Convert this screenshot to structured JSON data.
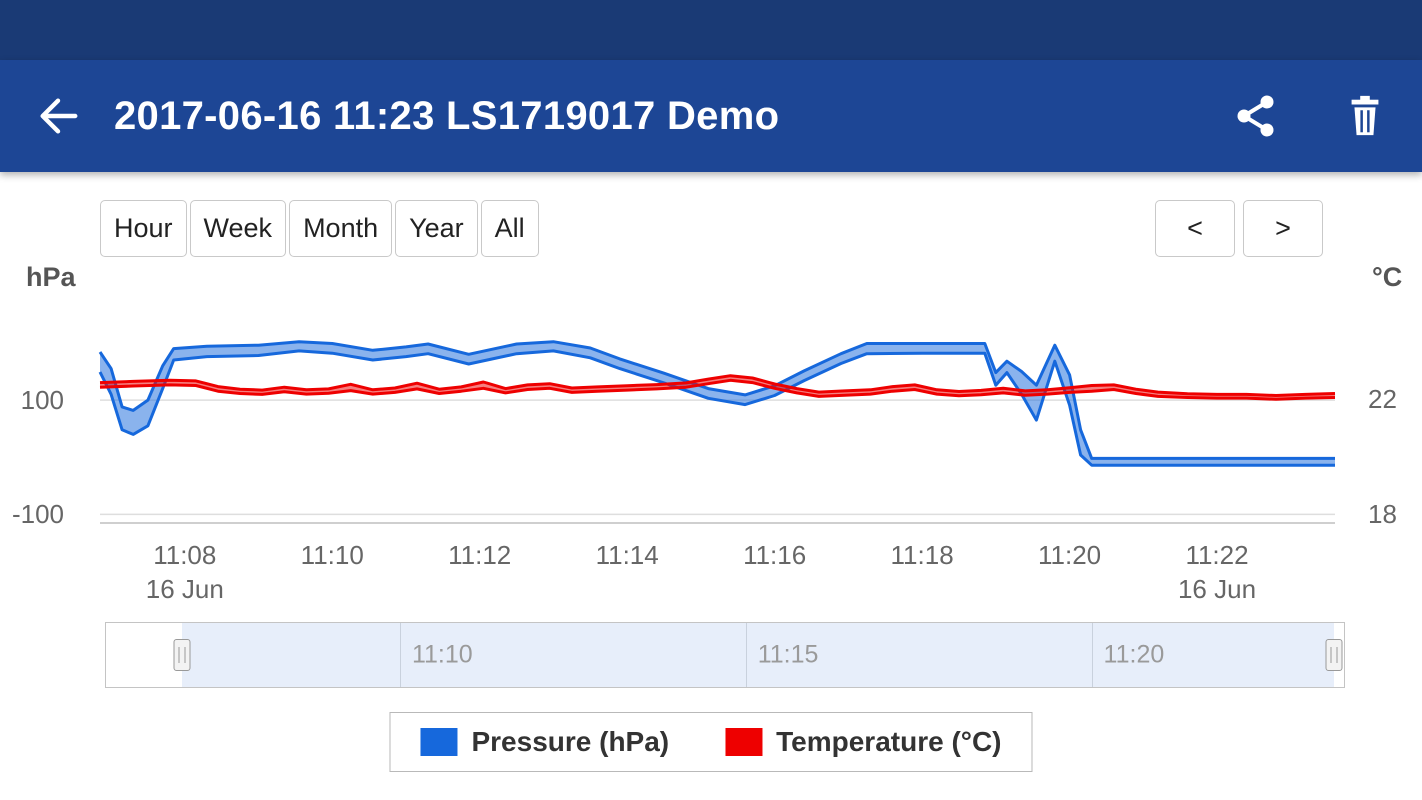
{
  "theme": {
    "status_bar": "#1a3a75",
    "app_bar": "#1d4695"
  },
  "app_bar": {
    "title": "2017-06-16 11:23 LS1719017 Demo",
    "back_icon": "arrow-left",
    "share_icon": "share",
    "delete_icon": "trash"
  },
  "toolbar": {
    "range_buttons": [
      "Hour",
      "Week",
      "Month",
      "Year",
      "All"
    ],
    "prev_label": "<",
    "next_label": ">"
  },
  "chart_data": {
    "type": "arearange",
    "title": "",
    "x_axis": {
      "unit": "time (minutes after 11:00 on 16 Jun)",
      "range": [
        6.85,
        23.6
      ],
      "ticks": [
        {
          "t": 8,
          "label": "11:08"
        },
        {
          "t": 10,
          "label": "11:10"
        },
        {
          "t": 12,
          "label": "11:12"
        },
        {
          "t": 14,
          "label": "11:14"
        },
        {
          "t": 16,
          "label": "11:16"
        },
        {
          "t": 18,
          "label": "11:18"
        },
        {
          "t": 20,
          "label": "11:20"
        },
        {
          "t": 22,
          "label": "11:22"
        }
      ],
      "sub_labels": [
        {
          "t": 8,
          "label": "16 Jun"
        },
        {
          "t": 22,
          "label": "16 Jun"
        }
      ]
    },
    "y_axis_left": {
      "unit_label": "hPa",
      "range": [
        -115,
        275
      ],
      "ticks": [
        {
          "v": 100,
          "label": "100"
        },
        {
          "v": -100,
          "label": "-100"
        }
      ]
    },
    "y_axis_right": {
      "unit_label": "°C",
      "range": [
        17.7,
        25.45
      ],
      "ticks": [
        {
          "v": 22,
          "label": "22"
        },
        {
          "v": 18,
          "label": "18"
        }
      ]
    },
    "series": [
      {
        "name": "Pressure (hPa)",
        "axis": "left",
        "color": "#1668dc",
        "points": [
          [
            6.85,
            149,
            184
          ],
          [
            7.0,
            110,
            155
          ],
          [
            7.15,
            48,
            88
          ],
          [
            7.3,
            40,
            82
          ],
          [
            7.5,
            55,
            100
          ],
          [
            7.7,
            120,
            160
          ],
          [
            7.85,
            170,
            190
          ],
          [
            8.3,
            176,
            194
          ],
          [
            9.0,
            178,
            196
          ],
          [
            9.55,
            186,
            202
          ],
          [
            10.0,
            182,
            199
          ],
          [
            10.55,
            170,
            187
          ],
          [
            11.0,
            176,
            193
          ],
          [
            11.3,
            181,
            198
          ],
          [
            11.85,
            163,
            180
          ],
          [
            12.5,
            181,
            198
          ],
          [
            13.0,
            186,
            202
          ],
          [
            13.5,
            174,
            191
          ],
          [
            13.9,
            155,
            172
          ],
          [
            14.5,
            130,
            147
          ],
          [
            15.1,
            103,
            120
          ],
          [
            15.6,
            92,
            109
          ],
          [
            16.0,
            108,
            125
          ],
          [
            16.4,
            134,
            151
          ],
          [
            16.9,
            164,
            181
          ],
          [
            17.25,
            181,
            199
          ],
          [
            18.0,
            182,
            199
          ],
          [
            18.85,
            182,
            199
          ],
          [
            19.0,
            126,
            148
          ],
          [
            19.15,
            148,
            168
          ],
          [
            19.35,
            110,
            150
          ],
          [
            19.55,
            65,
            126
          ],
          [
            19.8,
            168,
            196
          ],
          [
            20.0,
            91,
            144
          ],
          [
            20.15,
            4,
            48
          ],
          [
            20.3,
            -14,
            -2
          ],
          [
            21.5,
            -14,
            -2
          ],
          [
            23.6,
            -14,
            -2
          ]
        ]
      },
      {
        "name": "Temperature (°C)",
        "axis": "right",
        "color": "#ee0000",
        "points": [
          [
            6.85,
            22.42,
            22.58
          ],
          [
            7.3,
            22.46,
            22.62
          ],
          [
            7.8,
            22.5,
            22.66
          ],
          [
            8.15,
            22.48,
            22.64
          ],
          [
            8.45,
            22.28,
            22.44
          ],
          [
            8.75,
            22.2,
            22.35
          ],
          [
            9.05,
            22.17,
            22.32
          ],
          [
            9.35,
            22.26,
            22.42
          ],
          [
            9.65,
            22.18,
            22.33
          ],
          [
            9.95,
            22.21,
            22.36
          ],
          [
            10.25,
            22.3,
            22.52
          ],
          [
            10.55,
            22.18,
            22.33
          ],
          [
            10.85,
            22.24,
            22.39
          ],
          [
            11.15,
            22.36,
            22.56
          ],
          [
            11.45,
            22.2,
            22.35
          ],
          [
            11.75,
            22.28,
            22.43
          ],
          [
            12.05,
            22.38,
            22.6
          ],
          [
            12.35,
            22.22,
            22.37
          ],
          [
            12.65,
            22.34,
            22.5
          ],
          [
            12.95,
            22.38,
            22.54
          ],
          [
            13.25,
            22.24,
            22.39
          ],
          [
            13.6,
            22.28,
            22.43
          ],
          [
            14.0,
            22.32,
            22.47
          ],
          [
            14.4,
            22.36,
            22.51
          ],
          [
            14.8,
            22.42,
            22.57
          ],
          [
            15.1,
            22.54,
            22.7
          ],
          [
            15.4,
            22.66,
            22.82
          ],
          [
            15.7,
            22.58,
            22.74
          ],
          [
            16.0,
            22.38,
            22.53
          ],
          [
            16.3,
            22.22,
            22.37
          ],
          [
            16.6,
            22.1,
            22.25
          ],
          [
            16.95,
            22.14,
            22.29
          ],
          [
            17.3,
            22.18,
            22.33
          ],
          [
            17.6,
            22.28,
            22.44
          ],
          [
            17.9,
            22.34,
            22.5
          ],
          [
            18.2,
            22.18,
            22.33
          ],
          [
            18.5,
            22.12,
            22.27
          ],
          [
            18.8,
            22.16,
            22.31
          ],
          [
            19.1,
            22.22,
            22.38
          ],
          [
            19.4,
            22.14,
            22.29
          ],
          [
            19.7,
            22.18,
            22.33
          ],
          [
            20.0,
            22.24,
            22.4
          ],
          [
            20.3,
            22.28,
            22.48
          ],
          [
            20.6,
            22.34,
            22.5
          ],
          [
            20.9,
            22.2,
            22.35
          ],
          [
            21.2,
            22.1,
            22.25
          ],
          [
            21.6,
            22.06,
            22.19
          ],
          [
            22.0,
            22.04,
            22.17
          ],
          [
            22.4,
            22.04,
            22.17
          ],
          [
            22.8,
            22.0,
            22.13
          ],
          [
            23.2,
            22.04,
            22.17
          ],
          [
            23.6,
            22.06,
            22.2
          ]
        ]
      }
    ]
  },
  "navigator": {
    "range": [
      5.75,
      23.65
    ],
    "selection": [
      6.85,
      23.5
    ],
    "ticks": [
      {
        "t": 10,
        "label": "11:10"
      },
      {
        "t": 15,
        "label": "11:15"
      },
      {
        "t": 20,
        "label": "11:20"
      }
    ]
  },
  "legend": {
    "items": [
      {
        "label": "Pressure (hPa)",
        "color": "#1668dc"
      },
      {
        "label": "Temperature (°C)",
        "color": "#ee0000"
      }
    ]
  }
}
